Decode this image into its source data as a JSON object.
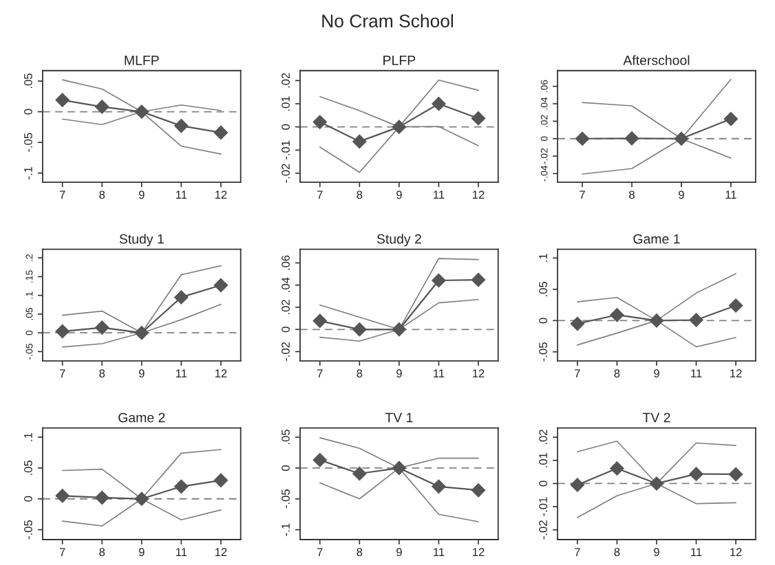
{
  "chart_data": [
    {
      "type": "other",
      "title": "No Cram School"
    },
    {
      "type": "line",
      "title": "MLFP",
      "categories": [
        "7",
        "8",
        "9",
        "11",
        "12"
      ],
      "ylim": [
        -0.115,
        0.067
      ],
      "yticks": [
        {
          "value": -0.1,
          "label": "-.1"
        },
        {
          "value": -0.05,
          "label": "-.05"
        },
        0,
        {
          "value": 0.05,
          "label": ".05"
        }
      ],
      "ref_lines": [
        {
          "axis": "y",
          "value": 0,
          "color": "#808080",
          "line_style": "dashed"
        }
      ],
      "grid": false,
      "legend": false,
      "series": [
        {
          "color": "#7f7f7f",
          "marker": "none",
          "values": [
            0.052,
            0.037,
            0,
            0.011,
            0.002
          ]
        },
        {
          "color": "#7f7f7f",
          "marker": "none",
          "values": [
            -0.012,
            -0.021,
            0,
            -0.056,
            -0.069
          ]
        },
        {
          "color": "#555555",
          "marker": "diamond",
          "values": [
            0.019,
            0.008,
            0,
            -0.023,
            -0.034
          ]
        }
      ]
    },
    {
      "type": "line",
      "title": "PLFP",
      "categories": [
        "7",
        "8",
        "9",
        "11",
        "12"
      ],
      "ylim": [
        -0.0239,
        0.0243
      ],
      "yticks": [
        {
          "value": -0.02,
          "label": "-.02"
        },
        {
          "value": -0.01,
          "label": "-.01"
        },
        0,
        {
          "value": 0.01,
          "label": ".01"
        },
        {
          "value": 0.02,
          "label": ".02"
        }
      ],
      "ref_lines": [
        {
          "axis": "y",
          "value": 0,
          "color": "#808080",
          "line_style": "dashed"
        }
      ],
      "grid": false,
      "legend": false,
      "series": [
        {
          "color": "#7f7f7f",
          "marker": "none",
          "values": [
            0.0131,
            0.007,
            0,
            0.0202,
            0.0158
          ]
        },
        {
          "color": "#7f7f7f",
          "marker": "none",
          "values": [
            -0.0087,
            -0.0196,
            0,
            0.0002,
            -0.0081
          ]
        },
        {
          "color": "#555555",
          "marker": "diamond",
          "values": [
            0.0021,
            -0.0063,
            0,
            0.01,
            0.0037
          ]
        }
      ]
    },
    {
      "type": "line",
      "title": "Afterschool",
      "categories": [
        "7",
        "8",
        "9",
        "11"
      ],
      "ylim": [
        -0.05,
        0.078
      ],
      "yticks": [
        {
          "value": -0.04,
          "label": "-.04"
        },
        {
          "value": -0.02,
          "label": "-.02"
        },
        0,
        {
          "value": 0.02,
          "label": ".02"
        },
        {
          "value": 0.04,
          "label": ".04"
        },
        {
          "value": 0.06,
          "label": ".06"
        }
      ],
      "ref_lines": [
        {
          "axis": "y",
          "value": 0,
          "color": "#808080",
          "line_style": "dashed"
        }
      ],
      "grid": false,
      "legend": false,
      "series": [
        {
          "color": "#7f7f7f",
          "marker": "none",
          "values": [
            0.0415,
            0.0376,
            0,
            0.068
          ]
        },
        {
          "color": "#7f7f7f",
          "marker": "none",
          "values": [
            -0.0406,
            -0.0343,
            0,
            -0.0223
          ]
        },
        {
          "color": "#555555",
          "marker": "diamond",
          "values": [
            0,
            0.0003,
            0,
            0.0226
          ]
        }
      ]
    },
    {
      "type": "line",
      "title": "Study 1",
      "categories": [
        "7",
        "8",
        "9",
        "11",
        "12"
      ],
      "ylim": [
        -0.075,
        0.223
      ],
      "yticks": [
        {
          "value": -0.05,
          "label": "-.05"
        },
        0,
        {
          "value": 0.05,
          "label": ".05"
        },
        {
          "value": 0.1,
          "label": ".1"
        },
        {
          "value": 0.15,
          "label": ".15"
        },
        {
          "value": 0.2,
          "label": ".2"
        }
      ],
      "ref_lines": [
        {
          "axis": "y",
          "value": 0,
          "color": "#808080",
          "line_style": "dashed"
        }
      ],
      "grid": false,
      "legend": false,
      "series": [
        {
          "color": "#7f7f7f",
          "marker": "none",
          "values": [
            0.047,
            0.058,
            0,
            0.155,
            0.179
          ]
        },
        {
          "color": "#7f7f7f",
          "marker": "none",
          "values": [
            -0.038,
            -0.029,
            0,
            0.035,
            0.076
          ]
        },
        {
          "color": "#555555",
          "marker": "diamond",
          "values": [
            0.004,
            0.014,
            0,
            0.095,
            0.127
          ]
        }
      ]
    },
    {
      "type": "line",
      "title": "Study 2",
      "categories": [
        "7",
        "8",
        "9",
        "11",
        "12"
      ],
      "ylim": [
        -0.0284,
        0.0723
      ],
      "yticks": [
        {
          "value": -0.02,
          "label": "-.02"
        },
        0,
        {
          "value": 0.02,
          "label": ".02"
        },
        {
          "value": 0.04,
          "label": ".04"
        },
        {
          "value": 0.06,
          "label": ".06"
        }
      ],
      "ref_lines": [
        {
          "axis": "y",
          "value": 0,
          "color": "#808080",
          "line_style": "dashed"
        }
      ],
      "grid": false,
      "legend": false,
      "series": [
        {
          "color": "#7f7f7f",
          "marker": "none",
          "values": [
            0.022,
            0.011,
            0,
            0.064,
            0.063
          ]
        },
        {
          "color": "#7f7f7f",
          "marker": "none",
          "values": [
            -0.007,
            -0.0105,
            0,
            0.024,
            0.027
          ]
        },
        {
          "color": "#555555",
          "marker": "diamond",
          "values": [
            0.0077,
            0,
            0,
            0.0442,
            0.0447
          ]
        }
      ]
    },
    {
      "type": "line",
      "title": "Game 1",
      "categories": [
        "7",
        "8",
        "9",
        "11",
        "12"
      ],
      "ylim": [
        -0.0645,
        0.114
      ],
      "yticks": [
        {
          "value": -0.05,
          "label": "-.05"
        },
        0,
        {
          "value": 0.05,
          "label": ".05"
        },
        {
          "value": 0.1,
          "label": ".1"
        }
      ],
      "ref_lines": [
        {
          "axis": "y",
          "value": 0,
          "color": "#808080",
          "line_style": "dashed"
        }
      ],
      "grid": false,
      "legend": false,
      "series": [
        {
          "color": "#7f7f7f",
          "marker": "none",
          "values": [
            0.03,
            0.037,
            0,
            0.044,
            0.075
          ]
        },
        {
          "color": "#7f7f7f",
          "marker": "none",
          "values": [
            -0.039,
            -0.02,
            0,
            -0.042,
            -0.027
          ]
        },
        {
          "color": "#555555",
          "marker": "diamond",
          "values": [
            -0.005,
            0.009,
            0,
            0.001,
            0.024
          ]
        }
      ]
    },
    {
      "type": "line",
      "title": "Game 2",
      "categories": [
        "7",
        "8",
        "9",
        "11",
        "12"
      ],
      "ylim": [
        -0.066,
        0.115
      ],
      "yticks": [
        {
          "value": -0.05,
          "label": "-.05"
        },
        0,
        {
          "value": 0.05,
          "label": ".05"
        },
        {
          "value": 0.1,
          "label": ".1"
        }
      ],
      "ref_lines": [
        {
          "axis": "y",
          "value": 0,
          "color": "#808080",
          "line_style": "dashed"
        }
      ],
      "grid": false,
      "legend": false,
      "series": [
        {
          "color": "#7f7f7f",
          "marker": "none",
          "values": [
            0.046,
            0.048,
            0,
            0.074,
            0.08
          ]
        },
        {
          "color": "#7f7f7f",
          "marker": "none",
          "values": [
            -0.036,
            -0.044,
            0,
            -0.034,
            -0.018
          ]
        },
        {
          "color": "#555555",
          "marker": "diamond",
          "values": [
            0.005,
            0.002,
            0,
            0.02,
            0.03
          ]
        }
      ]
    },
    {
      "type": "line",
      "title": "TV 1",
      "categories": [
        "7",
        "8",
        "9",
        "11",
        "12"
      ],
      "ylim": [
        -0.116,
        0.065
      ],
      "yticks": [
        {
          "value": -0.1,
          "label": "-.1"
        },
        {
          "value": -0.05,
          "label": "-.05"
        },
        0,
        {
          "value": 0.05,
          "label": ".05"
        }
      ],
      "ref_lines": [
        {
          "axis": "y",
          "value": 0,
          "color": "#808080",
          "line_style": "dashed"
        }
      ],
      "grid": false,
      "legend": false,
      "series": [
        {
          "color": "#7f7f7f",
          "marker": "none",
          "values": [
            0.049,
            0.032,
            0,
            0.016,
            0.016
          ]
        },
        {
          "color": "#7f7f7f",
          "marker": "none",
          "values": [
            -0.024,
            -0.05,
            0,
            -0.075,
            -0.087
          ]
        },
        {
          "color": "#555555",
          "marker": "diamond",
          "values": [
            0.013,
            -0.009,
            0,
            -0.03,
            -0.036
          ]
        }
      ]
    },
    {
      "type": "line",
      "title": "TV 2",
      "categories": [
        "7",
        "8",
        "9",
        "11",
        "12"
      ],
      "ylim": [
        -0.0242,
        0.024
      ],
      "yticks": [
        {
          "value": -0.02,
          "label": "-.02"
        },
        {
          "value": -0.01,
          "label": "-.01"
        },
        0,
        {
          "value": 0.01,
          "label": ".01"
        },
        {
          "value": 0.02,
          "label": ".02"
        }
      ],
      "ref_lines": [
        {
          "axis": "y",
          "value": 0,
          "color": "#808080",
          "line_style": "dashed"
        }
      ],
      "grid": false,
      "legend": false,
      "series": [
        {
          "color": "#7f7f7f",
          "marker": "none",
          "values": [
            0.0137,
            0.0183,
            0,
            0.0175,
            0.0164
          ]
        },
        {
          "color": "#7f7f7f",
          "marker": "none",
          "values": [
            -0.0147,
            -0.0053,
            0,
            -0.0087,
            -0.0083
          ]
        },
        {
          "color": "#555555",
          "marker": "diamond",
          "values": [
            -0.0006,
            0.0065,
            0,
            0.0041,
            0.004
          ]
        }
      ]
    }
  ]
}
